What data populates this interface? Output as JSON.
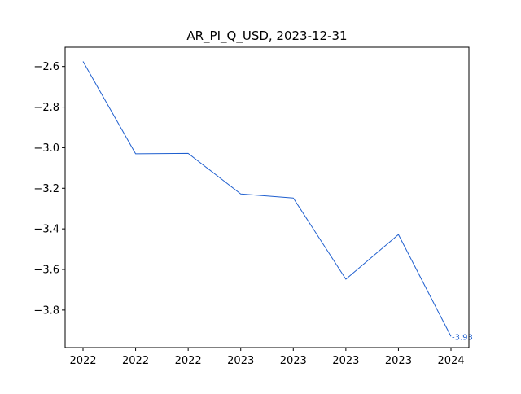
{
  "chart_data": {
    "type": "line",
    "title": "AR_PI_Q_USD, 2023-12-31",
    "xlabel": "",
    "ylabel": "",
    "x": [
      "2022",
      "2022",
      "2022",
      "2023",
      "2023",
      "2023",
      "2023",
      "2024"
    ],
    "series": [
      {
        "values": [
          -2.575,
          -3.03,
          -3.028,
          -3.228,
          -3.248,
          -3.648,
          -3.428,
          -3.93
        ],
        "color": "#1f5fcf"
      }
    ],
    "ylim": [
      -3.985,
      -2.505
    ],
    "yticks": [
      -2.6,
      -2.8,
      -3.0,
      -3.2,
      -3.4,
      -3.6,
      -3.8
    ],
    "ytick_labels": [
      "−2.6",
      "−2.8",
      "−3.0",
      "−3.2",
      "−3.4",
      "−3.6",
      "−3.8"
    ],
    "end_label": "-3.93",
    "grid": false,
    "legend": "none"
  }
}
